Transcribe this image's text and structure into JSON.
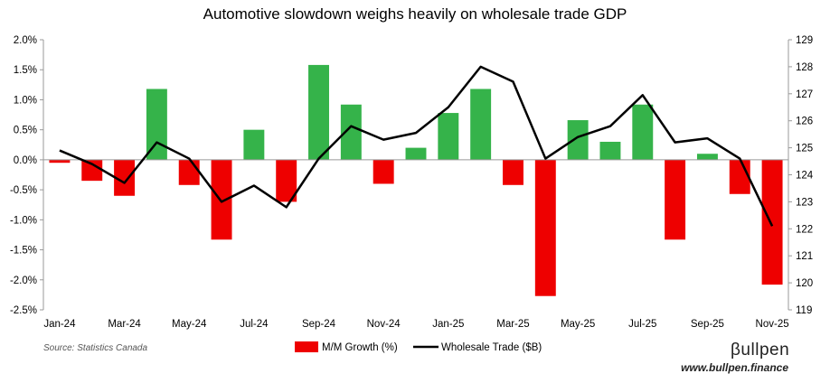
{
  "chart_data": {
    "type": "bar",
    "title": "Automotive slowdown weighs heavily on wholesale trade GDP",
    "categories": [
      "Jan-24",
      "Feb-24",
      "Mar-24",
      "Apr-24",
      "May-24",
      "Jun-24",
      "Jul-24",
      "Aug-24",
      "Sep-24",
      "Oct-24",
      "Nov-24",
      "Dec-24",
      "Jan-25",
      "Feb-25",
      "Mar-25",
      "Apr-25",
      "May-25",
      "Jun-25",
      "Jul-25",
      "Aug-25",
      "Sep-25",
      "Oct-25",
      "Nov-25"
    ],
    "x_tick_labels": [
      "Jan-24",
      "Mar-24",
      "May-24",
      "Jul-24",
      "Sep-24",
      "Nov-24",
      "Jan-25",
      "Mar-25",
      "May-25",
      "Jul-25",
      "Sep-25",
      "Nov-25"
    ],
    "series": [
      {
        "name": "M/M Growth (%)",
        "type": "bar",
        "axis": "left",
        "values": [
          -0.05,
          -0.35,
          -0.6,
          1.18,
          -0.42,
          -1.33,
          0.5,
          -0.7,
          1.58,
          0.92,
          -0.4,
          0.2,
          0.78,
          1.18,
          -0.42,
          -2.27,
          0.66,
          0.3,
          0.92,
          -1.33,
          0.1,
          -0.57,
          -2.08
        ]
      },
      {
        "name": "Wholesale Trade ($B)",
        "type": "line",
        "axis": "right",
        "values": [
          124.9,
          124.4,
          123.7,
          125.2,
          124.6,
          123.0,
          123.6,
          122.8,
          124.6,
          125.8,
          125.3,
          125.55,
          126.5,
          128.0,
          127.45,
          124.6,
          125.4,
          125.8,
          126.95,
          125.2,
          125.35,
          124.6,
          122.1
        ]
      }
    ],
    "y_left": {
      "ylim": [
        -2.5,
        2.0
      ],
      "ticks": [
        "2.0%",
        "1.5%",
        "1.0%",
        "0.5%",
        "0.0%",
        "-0.5%",
        "-1.0%",
        "-1.5%",
        "-2.0%",
        "-2.5%"
      ]
    },
    "y_right": {
      "ylim": [
        119,
        129
      ],
      "ticks": [
        "129",
        "128",
        "127",
        "126",
        "125",
        "124",
        "123",
        "122",
        "121",
        "120",
        "119"
      ]
    },
    "colors": {
      "positive": "#35b34a",
      "negative": "#ee0000",
      "line": "#000000",
      "axis": "#999999"
    },
    "legend": [
      {
        "label": "M/M Growth (%)",
        "swatch": "bar"
      },
      {
        "label": "Wholesale Trade ($B)",
        "swatch": "line"
      }
    ],
    "legend_position": "bottom-center"
  },
  "source": "Source: Statistics Canada",
  "brand": {
    "name": "βullpen",
    "url": "www.bullpen.finance"
  }
}
